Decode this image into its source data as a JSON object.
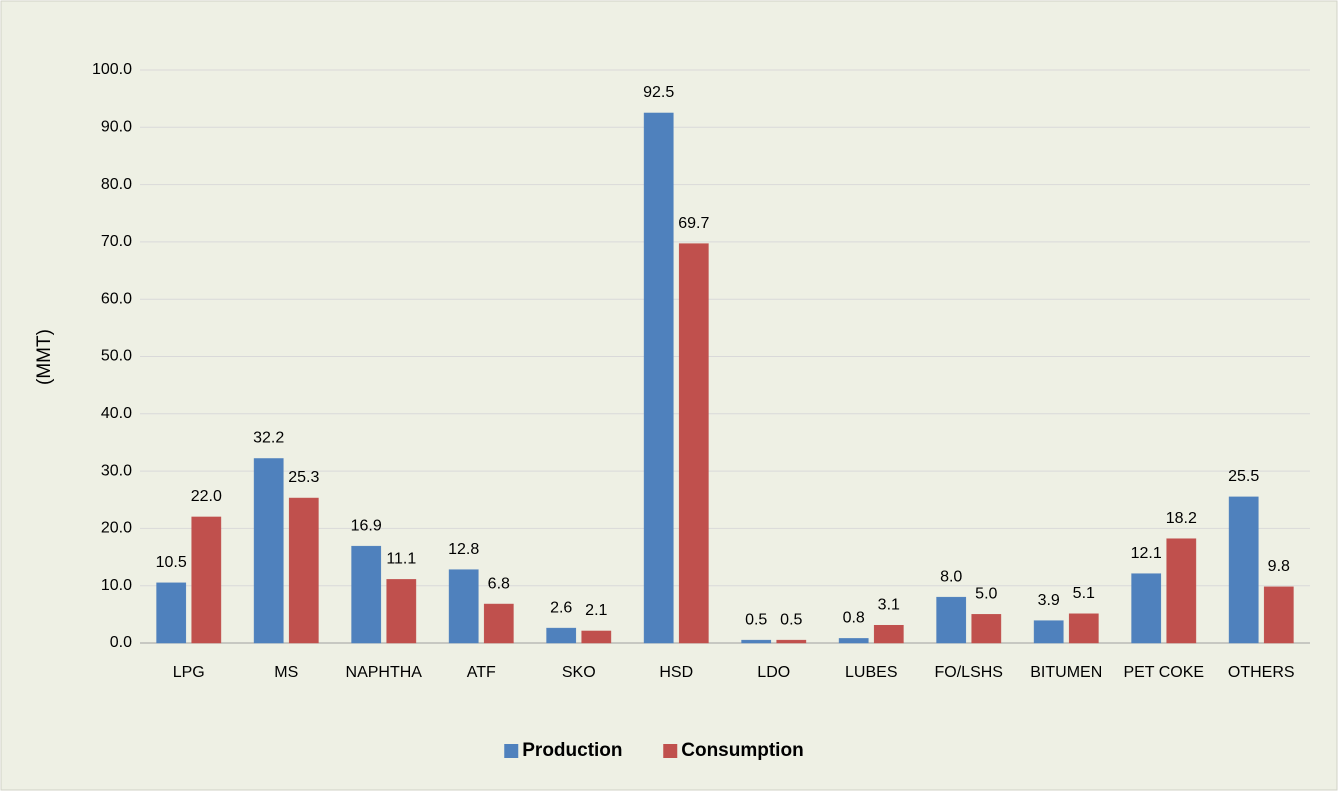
{
  "chart_data": {
    "type": "bar",
    "y_label": "(MMT)",
    "categories": [
      "LPG",
      "MS",
      "NAPHTHA",
      "ATF",
      "SKO",
      "HSD",
      "LDO",
      "LUBES",
      "FO/LSHS",
      "BITUMEN",
      "PET COKE",
      "OTHERS"
    ],
    "series": [
      {
        "name": "Production",
        "color": "#4f81bd",
        "values": [
          10.5,
          32.2,
          16.9,
          12.8,
          2.6,
          92.5,
          0.5,
          0.8,
          8.0,
          3.9,
          12.1,
          25.5
        ],
        "value_labels": [
          "10.5",
          "32.2",
          "16.9",
          "12.8",
          "2.6",
          "92.5",
          "0.5",
          "0.8",
          "8.0",
          "3.9",
          "12.1",
          "25.5"
        ]
      },
      {
        "name": "Consumption",
        "color": "#c0504d",
        "values": [
          22.0,
          25.3,
          11.1,
          6.8,
          2.1,
          69.7,
          0.5,
          3.1,
          5.0,
          5.1,
          18.2,
          9.8
        ],
        "value_labels": [
          "22.0",
          "25.3",
          "11.1",
          "6.8",
          "2.1",
          "69.7",
          "0.5",
          "3.1",
          "5.0",
          "5.1",
          "18.2",
          "9.8"
        ]
      }
    ],
    "ylim": [
      0,
      100
    ],
    "yticks": [
      {
        "value": 0,
        "label": "0.0"
      },
      {
        "value": 10,
        "label": "10.0"
      },
      {
        "value": 20,
        "label": "20.0"
      },
      {
        "value": 30,
        "label": "30.0"
      },
      {
        "value": 40,
        "label": "40.0"
      },
      {
        "value": 50,
        "label": "50.0"
      },
      {
        "value": 60,
        "label": "60.0"
      },
      {
        "value": 70,
        "label": "70.0"
      },
      {
        "value": 80,
        "label": "80.0"
      },
      {
        "value": 90,
        "label": "90.0"
      },
      {
        "value": 100,
        "label": "100.0"
      }
    ],
    "grid": true,
    "legend": "bottom"
  }
}
